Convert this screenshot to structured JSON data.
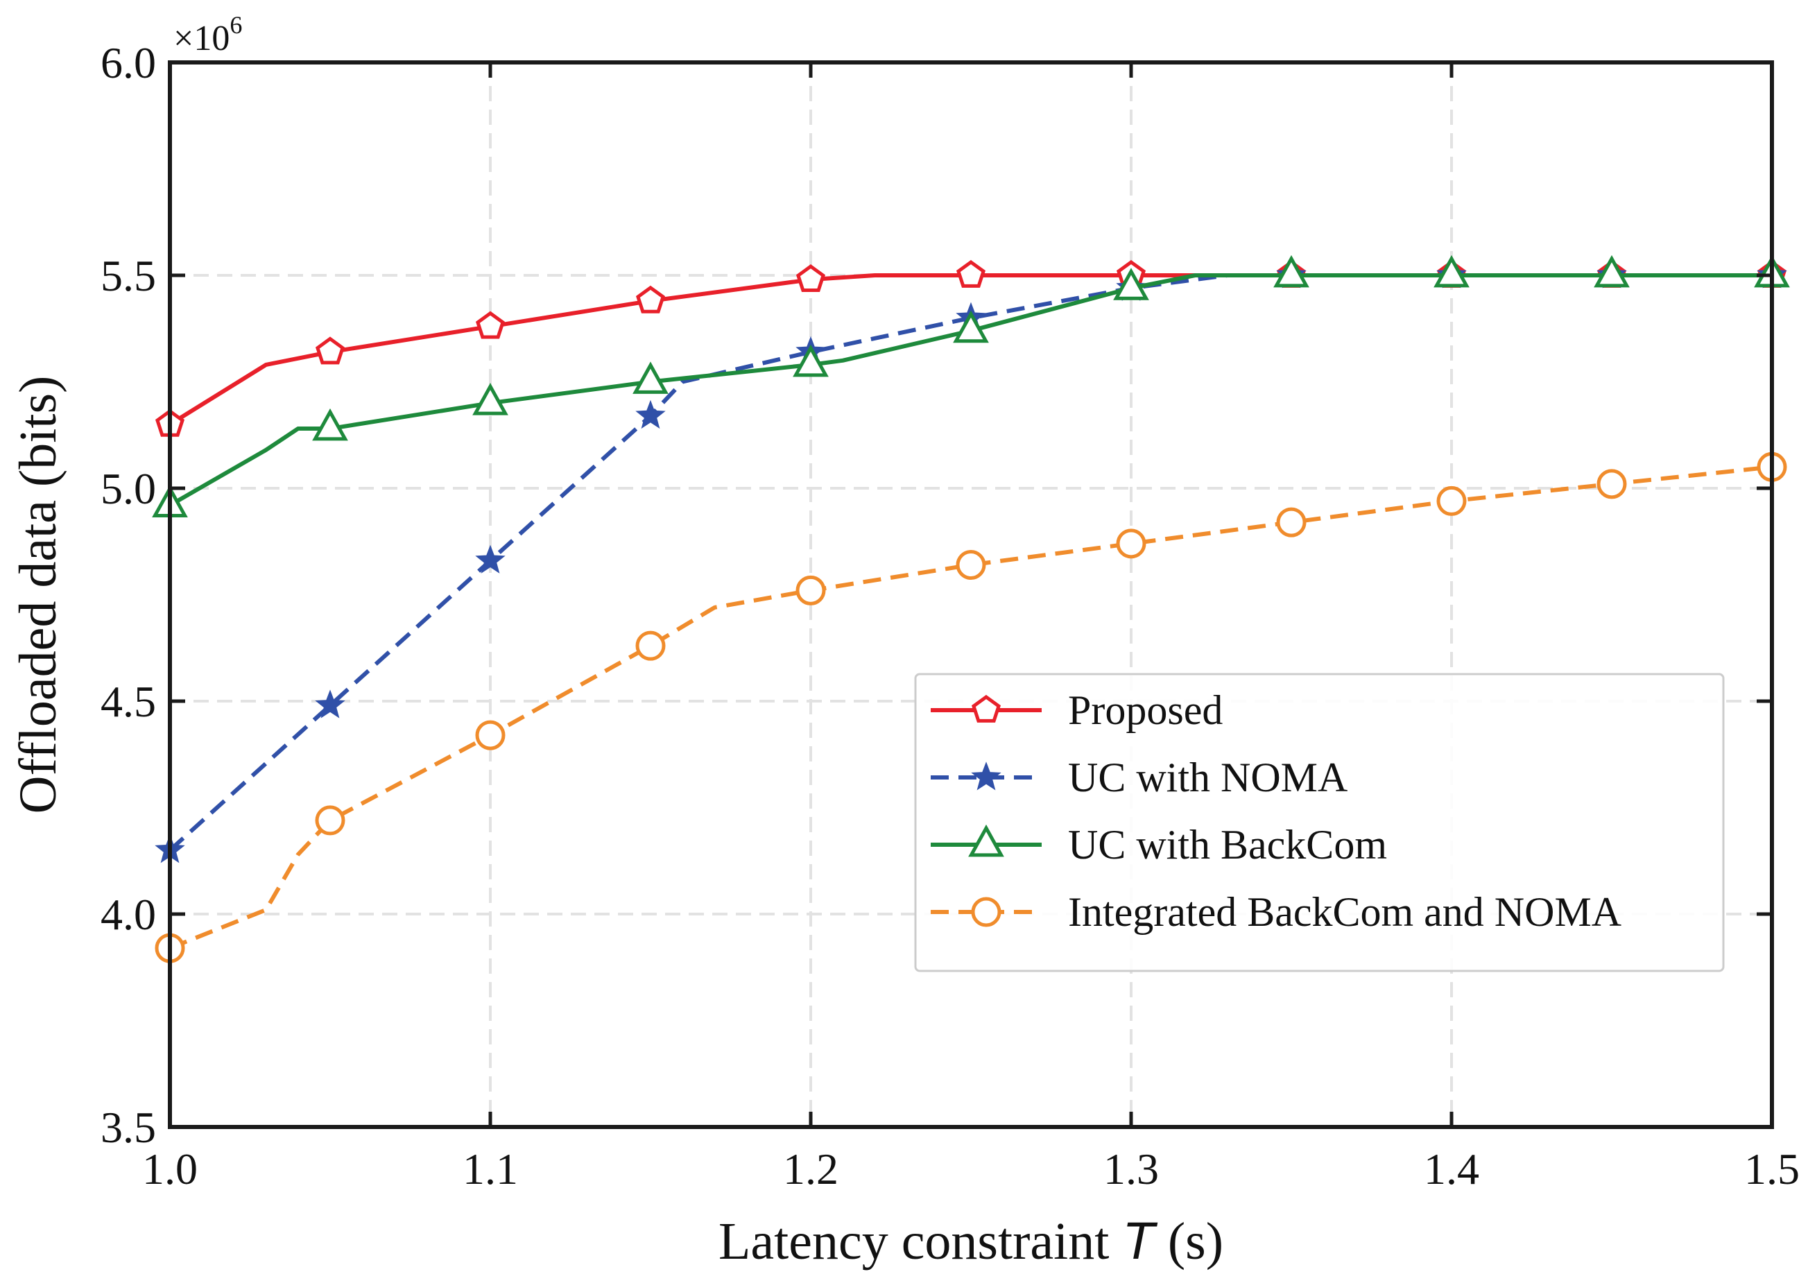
{
  "chart_data": {
    "type": "line",
    "xlabel_main": "Latency constraint ",
    "xlabel_var": "T",
    "xlabel_unit": " (s)",
    "ylabel": "Offloaded data (bits)",
    "y_multiplier_base": "×10",
    "y_multiplier_exp": "6",
    "xlim": [
      1.0,
      1.5
    ],
    "ylim": [
      3.5,
      6.0
    ],
    "xticks": [
      1.0,
      1.1,
      1.2,
      1.3,
      1.4,
      1.5
    ],
    "xtick_labels": [
      "1.0",
      "1.1",
      "1.2",
      "1.3",
      "1.4",
      "1.5"
    ],
    "yticks": [
      3.5,
      4.0,
      4.5,
      5.0,
      5.5,
      6.0
    ],
    "ytick_labels": [
      "3.5",
      "4.0",
      "4.5",
      "5.0",
      "5.5",
      "6.0"
    ],
    "grid": true,
    "legend_position": "center-right",
    "series": [
      {
        "name": "Proposed",
        "color": "#e8202a",
        "dash": "solid",
        "marker": "pentagon",
        "x": [
          1.0,
          1.03,
          1.05,
          1.1,
          1.15,
          1.2,
          1.22,
          1.25,
          1.3,
          1.35,
          1.4,
          1.45,
          1.5
        ],
        "y": [
          5.15,
          5.29,
          5.32,
          5.38,
          5.44,
          5.49,
          5.5,
          5.5,
          5.5,
          5.5,
          5.5,
          5.5,
          5.5
        ],
        "marker_x": [
          1.0,
          1.05,
          1.1,
          1.15,
          1.2,
          1.25,
          1.3,
          1.35,
          1.4,
          1.45,
          1.5
        ],
        "marker_y": [
          5.15,
          5.32,
          5.38,
          5.44,
          5.49,
          5.5,
          5.5,
          5.5,
          5.5,
          5.5,
          5.5
        ]
      },
      {
        "name": "UC with NOMA",
        "color": "#3050a8",
        "dash": "dashed",
        "marker": "star",
        "x": [
          1.0,
          1.05,
          1.1,
          1.15,
          1.16,
          1.2,
          1.25,
          1.3,
          1.33,
          1.35,
          1.4,
          1.45,
          1.5
        ],
        "y": [
          4.15,
          4.49,
          4.83,
          5.17,
          5.25,
          5.32,
          5.4,
          5.47,
          5.5,
          5.5,
          5.5,
          5.5,
          5.5
        ],
        "marker_x": [
          1.0,
          1.05,
          1.1,
          1.15,
          1.2,
          1.25,
          1.3,
          1.35,
          1.4,
          1.45,
          1.5
        ],
        "marker_y": [
          4.15,
          4.49,
          4.83,
          5.17,
          5.32,
          5.4,
          5.47,
          5.5,
          5.5,
          5.5,
          5.5
        ]
      },
      {
        "name": "UC with BackCom",
        "color": "#1e8a3c",
        "dash": "solid",
        "marker": "triangle",
        "x": [
          1.0,
          1.03,
          1.04,
          1.05,
          1.1,
          1.15,
          1.2,
          1.21,
          1.25,
          1.3,
          1.32,
          1.35,
          1.4,
          1.45,
          1.5
        ],
        "y": [
          4.96,
          5.09,
          5.14,
          5.14,
          5.2,
          5.25,
          5.29,
          5.3,
          5.37,
          5.47,
          5.5,
          5.5,
          5.5,
          5.5,
          5.5
        ],
        "marker_x": [
          1.0,
          1.05,
          1.1,
          1.15,
          1.2,
          1.25,
          1.3,
          1.35,
          1.4,
          1.45,
          1.5
        ],
        "marker_y": [
          4.96,
          5.14,
          5.2,
          5.25,
          5.29,
          5.37,
          5.47,
          5.5,
          5.5,
          5.5,
          5.5
        ]
      },
      {
        "name": "Integrated BackCom and NOMA",
        "color": "#f08c2c",
        "dash": "dashed",
        "marker": "circle",
        "x": [
          1.0,
          1.03,
          1.04,
          1.05,
          1.1,
          1.15,
          1.17,
          1.2,
          1.25,
          1.3,
          1.35,
          1.4,
          1.45,
          1.5
        ],
        "y": [
          3.92,
          4.01,
          4.14,
          4.22,
          4.42,
          4.63,
          4.72,
          4.76,
          4.82,
          4.87,
          4.92,
          4.97,
          5.01,
          5.05
        ],
        "marker_x": [
          1.0,
          1.05,
          1.1,
          1.15,
          1.2,
          1.25,
          1.3,
          1.35,
          1.4,
          1.45,
          1.5
        ],
        "marker_y": [
          3.92,
          4.22,
          4.42,
          4.63,
          4.76,
          4.82,
          4.87,
          4.92,
          4.97,
          5.01,
          5.05
        ]
      }
    ]
  }
}
